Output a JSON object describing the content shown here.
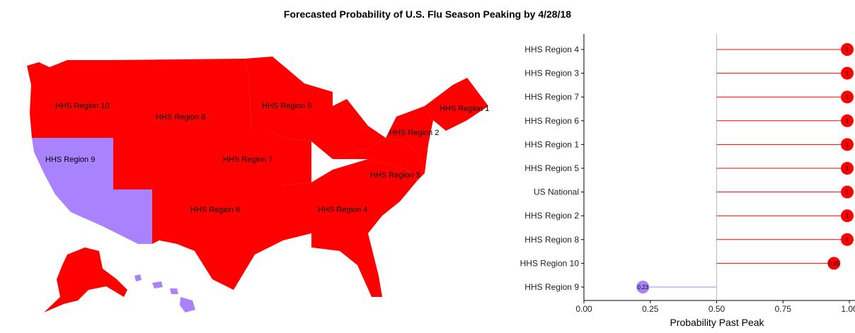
{
  "title": "Forecasted Probability of U.S. Flu Season Peaking by 4/28/18",
  "colors": {
    "peaked": "#ff0000",
    "not_peaked": "#a882ff",
    "threshold_line": "#bbbbbb",
    "axis": "#000000"
  },
  "map": {
    "labels": [
      "HHS Region 10",
      "HHS Region 8",
      "HHS Region 5",
      "HHS Region 1",
      "HHS Region 2",
      "HHS Region 9",
      "HHS Region 7",
      "HHS Region 3",
      "HHS Region 6",
      "HHS Region 4"
    ]
  },
  "chart_data": {
    "type": "lollipop",
    "categories": [
      "HHS Region 4",
      "HHS Region 3",
      "HHS Region 7",
      "HHS Region 6",
      "HHS Region 1",
      "HHS Region 5",
      "US National",
      "HHS Region 2",
      "HHS Region 8",
      "HHS Region 10",
      "HHS Region 9"
    ],
    "values": [
      1,
      1,
      1,
      1,
      1,
      1,
      1,
      1,
      1,
      0.95,
      0.23
    ],
    "point_labels": [
      "1",
      "1",
      "1",
      "1",
      "1",
      "1",
      "1",
      "1",
      "1",
      "0.95",
      "0.23"
    ],
    "baseline": 0.5,
    "xlabel": "Probability Past Peak",
    "xlim": [
      0,
      1
    ],
    "xticks": [
      "0.00",
      "0.25",
      "0.50",
      "0.75",
      "1.00"
    ],
    "xtick_values": [
      0,
      0.25,
      0.5,
      0.75,
      1
    ]
  }
}
